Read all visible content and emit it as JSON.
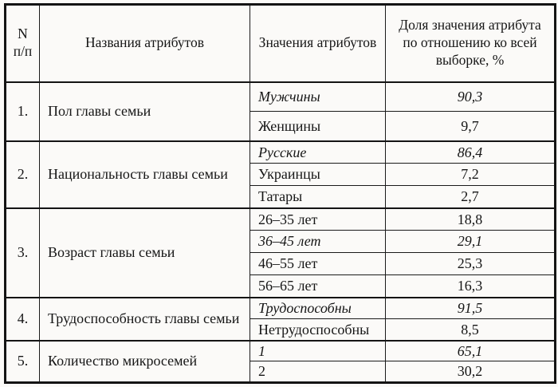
{
  "page": {
    "background": "#fbfaf8",
    "ink": "#161616"
  },
  "table": {
    "header": {
      "num_line1": "N",
      "num_line2": "п/п",
      "names": "Названия атрибутов",
      "values": "Значения атрибутов",
      "share": "Доля значения атрибута по отношению ко всей выборке, %"
    },
    "sections": [
      {
        "num": "1.",
        "name": "Пол главы семьи",
        "rows": [
          {
            "value": "Мужчины",
            "share": "90,3",
            "emphasis": true
          },
          {
            "value": "Женщины",
            "share": "9,7",
            "emphasis": false
          }
        ]
      },
      {
        "num": "2.",
        "name": "Национальность главы семьи",
        "rows": [
          {
            "value": "Русские",
            "share": "86,4",
            "emphasis": true
          },
          {
            "value": "Украинцы",
            "share": "7,2",
            "emphasis": false
          },
          {
            "value": "Татары",
            "share": "2,7",
            "emphasis": false
          }
        ]
      },
      {
        "num": "3.",
        "name": "Возраст главы семьи",
        "rows": [
          {
            "value": "26–35 лет",
            "share": "18,8",
            "emphasis": false
          },
          {
            "value": "36–45 лет",
            "share": "29,1",
            "emphasis": true
          },
          {
            "value": "46–55 лет",
            "share": "25,3",
            "emphasis": false
          },
          {
            "value": "56–65 лет",
            "share": "16,3",
            "emphasis": false
          }
        ]
      },
      {
        "num": "4.",
        "name": "Трудоспособность главы семьи",
        "rows": [
          {
            "value": "Трудоспособны",
            "share": "91,5",
            "emphasis": true
          },
          {
            "value": "Нетрудоспособны",
            "share": "8,5",
            "emphasis": false
          }
        ]
      },
      {
        "num": "5.",
        "name": "Количество микросемей",
        "rows": [
          {
            "value": "1",
            "share": "65,1",
            "emphasis": true
          },
          {
            "value": "2",
            "share": "30,2",
            "emphasis": false
          }
        ]
      }
    ]
  }
}
